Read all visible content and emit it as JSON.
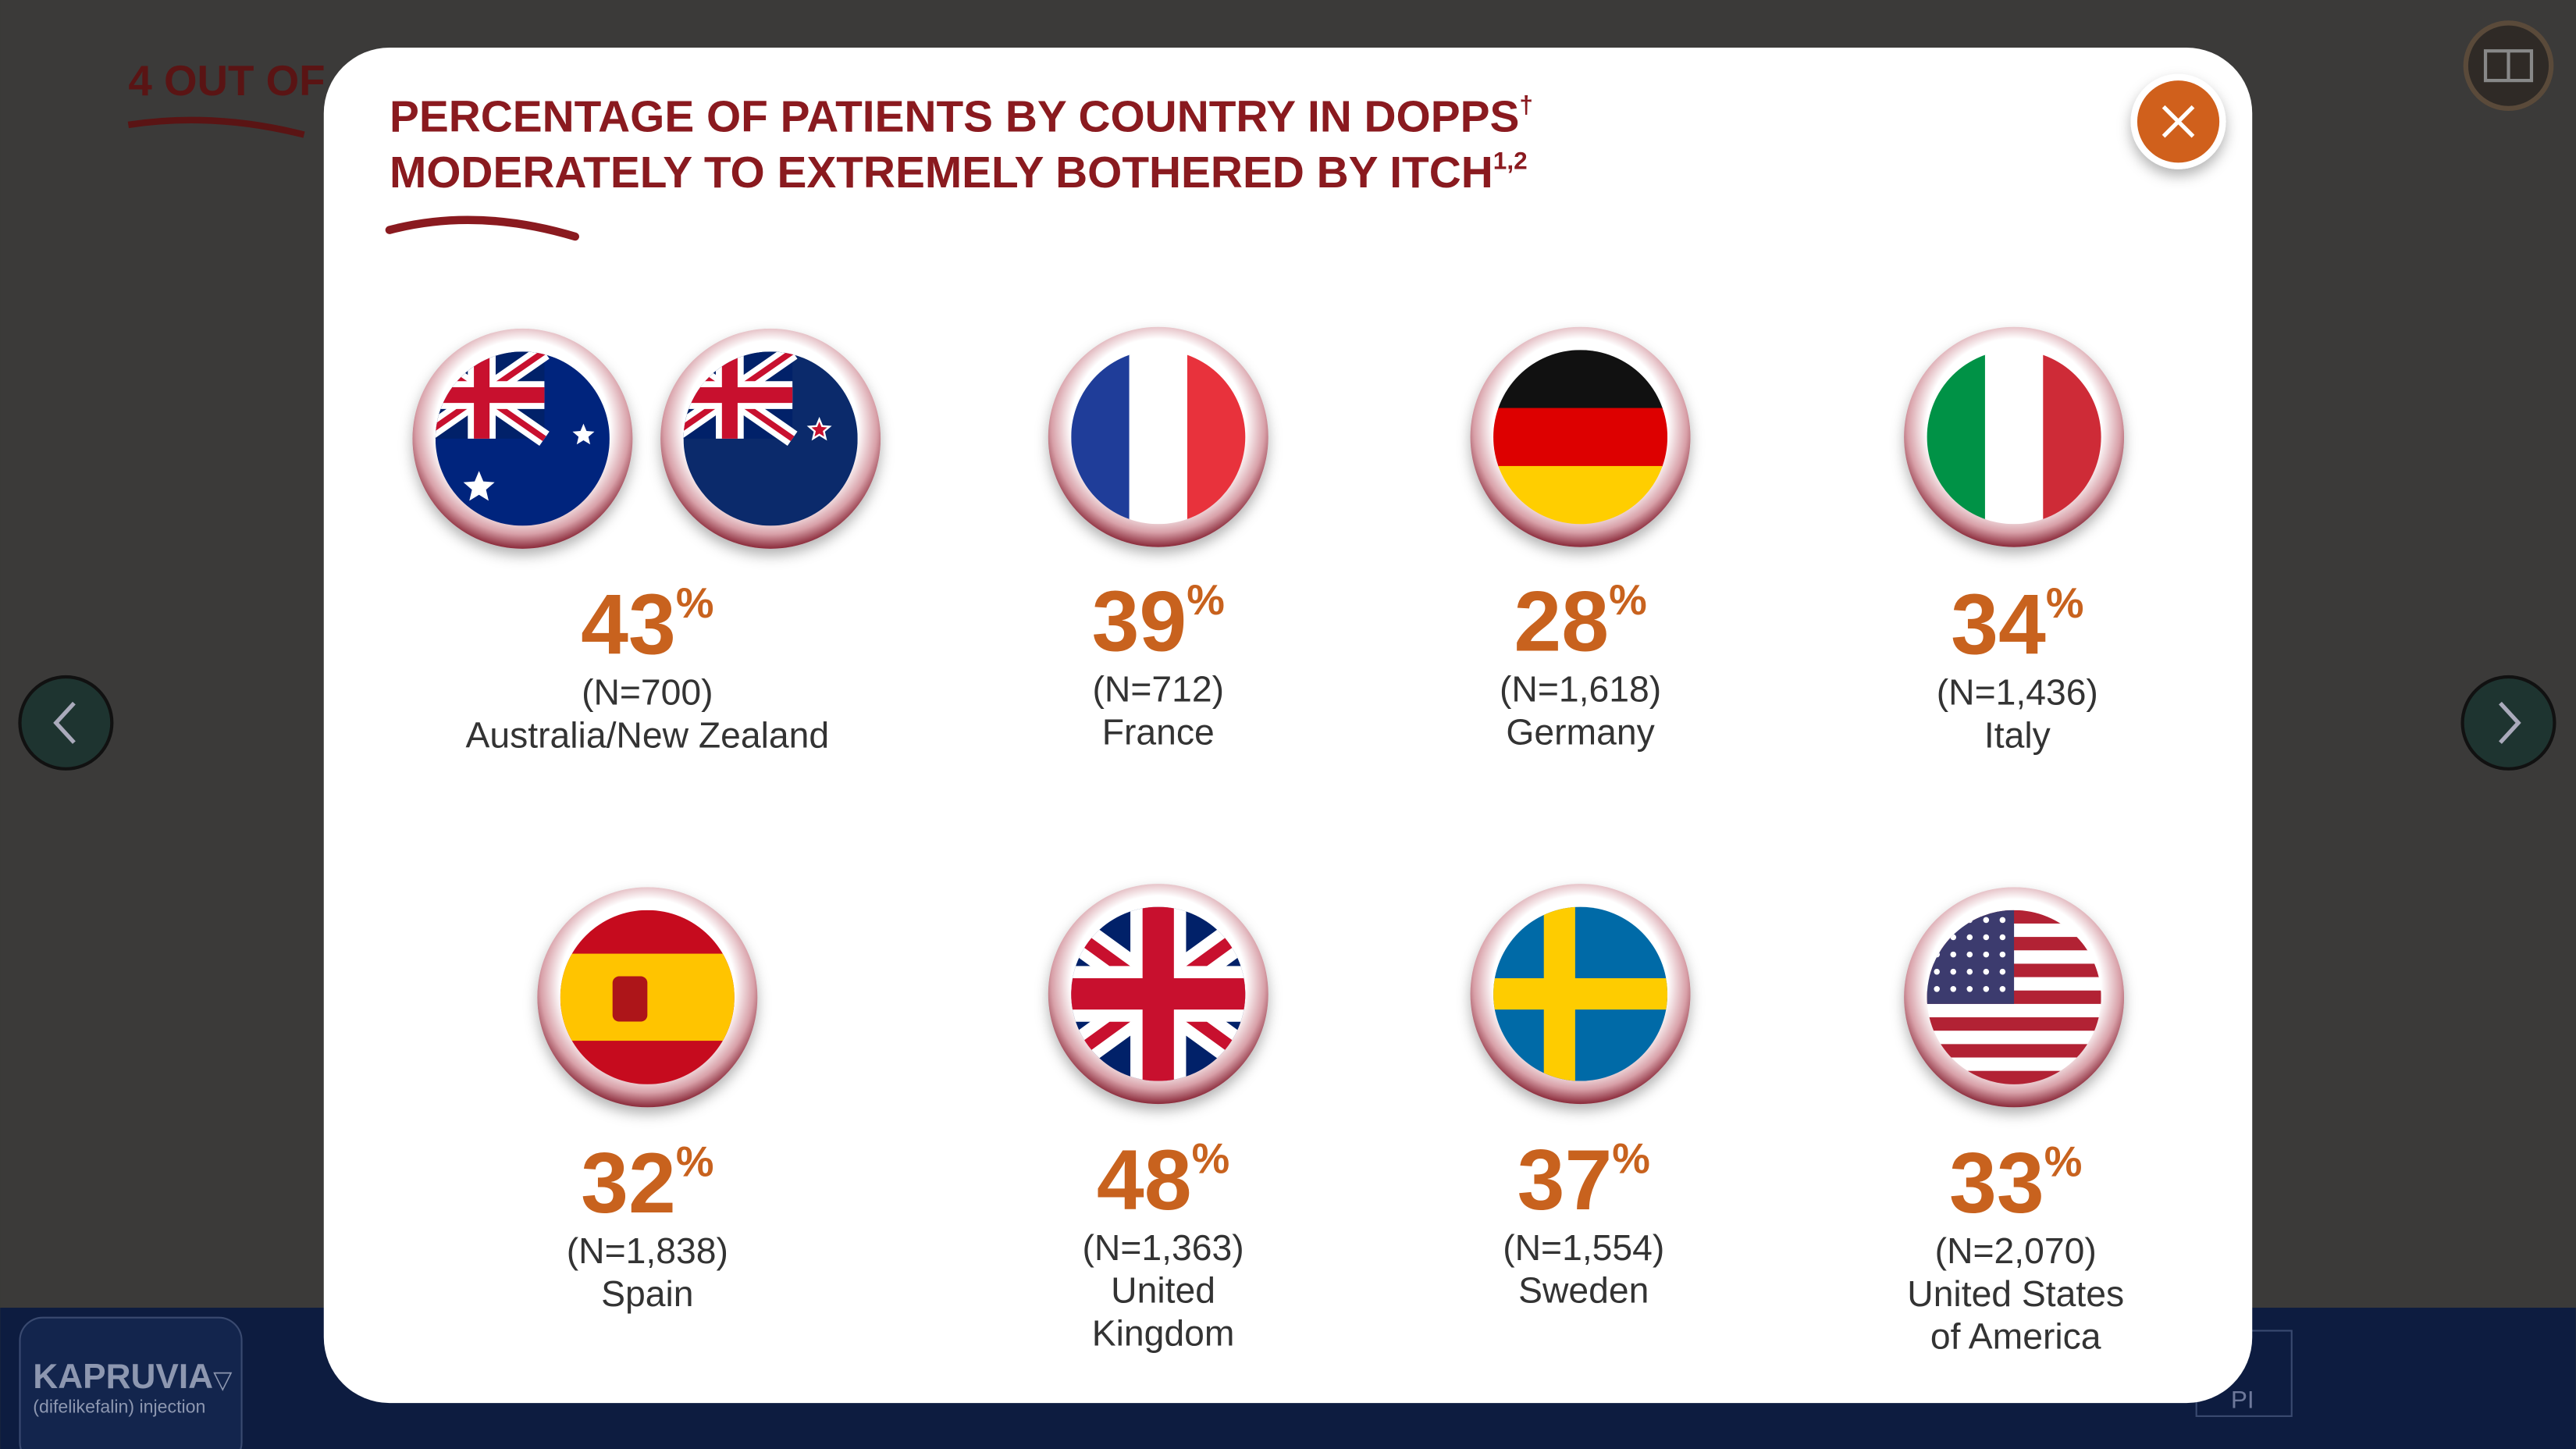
{
  "background": {
    "heading": "4 OUT OF",
    "brand": "KAPRUVIA",
    "brand_mark": "▽",
    "brand_subtitle": "(difelikefalin) injection",
    "pi_label": "PI"
  },
  "modal": {
    "title_lines": [
      {
        "text": "PERCENTAGE OF PATIENTS BY COUNTRY IN DOPPS",
        "sup": "†"
      },
      {
        "text": "MODERATELY TO EXTREMELY BOTHERED BY ITCH",
        "sup": "1,2"
      }
    ],
    "countries": [
      {
        "percent": "43",
        "unit": "%",
        "n": "(N=700)",
        "name_lines": [
          "Australia/New Zealand"
        ]
      },
      {
        "percent": "39",
        "unit": "%",
        "n": "(N=712)",
        "name_lines": [
          "France"
        ]
      },
      {
        "percent": "28",
        "unit": "%",
        "n": "(N=1,618)",
        "name_lines": [
          "Germany"
        ]
      },
      {
        "percent": "34",
        "unit": "%",
        "n": "(N=1,436)",
        "name_lines": [
          "Italy"
        ]
      },
      {
        "percent": "32",
        "unit": "%",
        "n": "(N=1,838)",
        "name_lines": [
          "Spain"
        ]
      },
      {
        "percent": "48",
        "unit": "%",
        "n": "(N=1,363)",
        "name_lines": [
          "United",
          "Kingdom"
        ]
      },
      {
        "percent": "37",
        "unit": "%",
        "n": "(N=1,554)",
        "name_lines": [
          "Sweden"
        ]
      },
      {
        "percent": "33",
        "unit": "%",
        "n": "(N=2,070)",
        "name_lines": [
          "United States",
          "of America"
        ]
      }
    ]
  }
}
